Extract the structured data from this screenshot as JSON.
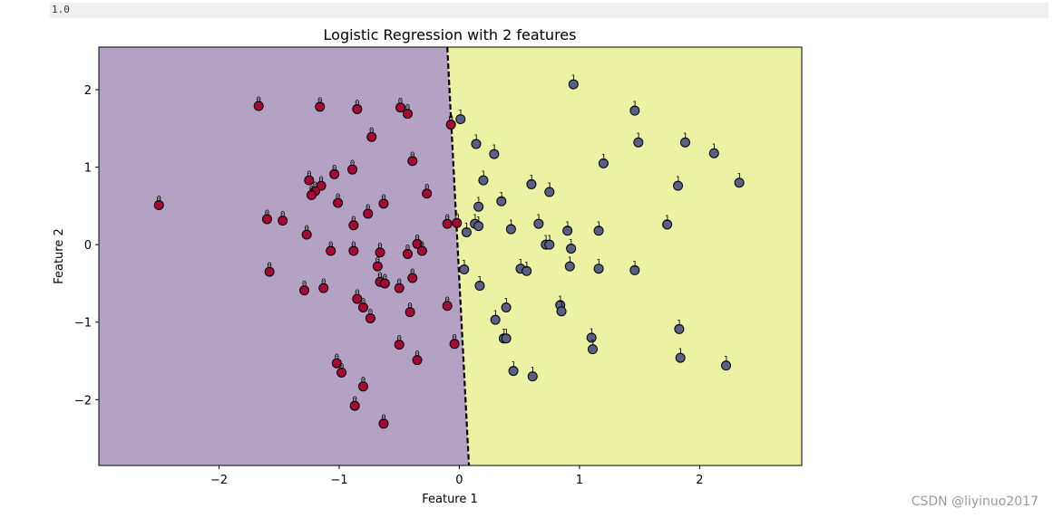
{
  "output_cell": {
    "text": "1.0"
  },
  "watermark": "CSDN @liyinuo2017",
  "colors": {
    "class0_region": "#b3a2c4",
    "class1_region": "#ebf2a4",
    "class0_point": "#a50a35",
    "class1_point": "#5a5f86",
    "boundary": "#000000"
  },
  "chart_data": {
    "type": "scatter",
    "title": "Logistic Regression with 2 features",
    "xlabel": "Feature 1",
    "ylabel": "Feature 2",
    "xlim": [
      -3.0,
      2.85
    ],
    "ylim": [
      -2.85,
      2.55
    ],
    "xticks": [
      -2,
      -1,
      0,
      1,
      2
    ],
    "xtick_labels": [
      "−2",
      "−1",
      "0",
      "1",
      "2"
    ],
    "yticks": [
      2,
      1,
      0,
      -1,
      -2
    ],
    "ytick_labels": [
      "2",
      "1",
      "0",
      "−1",
      "−2"
    ],
    "grid": false,
    "decision_boundary": [
      [
        -0.1,
        2.55
      ],
      [
        0.08,
        -2.85
      ]
    ],
    "series": [
      {
        "label": "0",
        "points": [
          [
            -2.5,
            0.51
          ],
          [
            -1.67,
            1.79
          ],
          [
            -1.16,
            1.78
          ],
          [
            -0.85,
            1.75
          ],
          [
            -0.49,
            1.77
          ],
          [
            -0.43,
            1.69
          ],
          [
            -0.07,
            1.55
          ],
          [
            -0.73,
            1.39
          ],
          [
            -0.39,
            1.08
          ],
          [
            -0.89,
            0.97
          ],
          [
            -1.04,
            0.91
          ],
          [
            -1.25,
            0.83
          ],
          [
            -1.15,
            0.76
          ],
          [
            -1.2,
            0.69
          ],
          [
            -1.23,
            0.64
          ],
          [
            -0.27,
            0.66
          ],
          [
            -1.01,
            0.54
          ],
          [
            -0.63,
            0.53
          ],
          [
            -0.76,
            0.4
          ],
          [
            -1.6,
            0.33
          ],
          [
            -1.47,
            0.31
          ],
          [
            -0.88,
            0.25
          ],
          [
            -0.1,
            0.27
          ],
          [
            -1.27,
            0.13
          ],
          [
            -0.35,
            0.01
          ],
          [
            -0.31,
            -0.08
          ],
          [
            -1.07,
            -0.08
          ],
          [
            -0.88,
            -0.08
          ],
          [
            -0.66,
            -0.1
          ],
          [
            -0.43,
            -0.12
          ],
          [
            -0.68,
            -0.28
          ],
          [
            -1.58,
            -0.35
          ],
          [
            -0.39,
            -0.43
          ],
          [
            -0.66,
            -0.48
          ],
          [
            -0.62,
            -0.5
          ],
          [
            -1.13,
            -0.56
          ],
          [
            -0.5,
            -0.56
          ],
          [
            -1.29,
            -0.59
          ],
          [
            -0.85,
            -0.7
          ],
          [
            -0.8,
            -0.81
          ],
          [
            -0.1,
            -0.79
          ],
          [
            -0.41,
            -0.87
          ],
          [
            -0.74,
            -0.95
          ],
          [
            -0.04,
            -1.28
          ],
          [
            -0.5,
            -1.29
          ],
          [
            -0.35,
            -1.49
          ],
          [
            -1.02,
            -1.53
          ],
          [
            -0.98,
            -1.65
          ],
          [
            -0.8,
            -1.83
          ],
          [
            -0.87,
            -2.08
          ],
          [
            -0.63,
            -2.31
          ],
          [
            -0.02,
            0.28
          ]
        ]
      },
      {
        "label": "1",
        "points": [
          [
            0.95,
            2.07
          ],
          [
            1.46,
            1.73
          ],
          [
            0.01,
            1.62
          ],
          [
            0.14,
            1.3
          ],
          [
            0.29,
            1.17
          ],
          [
            1.49,
            1.32
          ],
          [
            1.88,
            1.32
          ],
          [
            2.12,
            1.18
          ],
          [
            1.2,
            1.05
          ],
          [
            0.2,
            0.83
          ],
          [
            0.6,
            0.78
          ],
          [
            1.82,
            0.76
          ],
          [
            2.33,
            0.8
          ],
          [
            0.75,
            0.68
          ],
          [
            0.35,
            0.56
          ],
          [
            0.16,
            0.49
          ],
          [
            0.13,
            0.27
          ],
          [
            0.16,
            0.24
          ],
          [
            0.66,
            0.27
          ],
          [
            1.73,
            0.26
          ],
          [
            0.43,
            0.2
          ],
          [
            0.9,
            0.18
          ],
          [
            1.16,
            0.18
          ],
          [
            0.06,
            0.16
          ],
          [
            0.72,
            0.0
          ],
          [
            0.75,
            0.0
          ],
          [
            0.93,
            -0.05
          ],
          [
            0.92,
            -0.28
          ],
          [
            1.16,
            -0.31
          ],
          [
            1.46,
            -0.33
          ],
          [
            0.04,
            -0.32
          ],
          [
            0.51,
            -0.31
          ],
          [
            0.56,
            -0.34
          ],
          [
            0.17,
            -0.53
          ],
          [
            0.39,
            -0.81
          ],
          [
            0.84,
            -0.78
          ],
          [
            0.85,
            -0.86
          ],
          [
            0.3,
            -0.97
          ],
          [
            1.83,
            -1.09
          ],
          [
            1.1,
            -1.2
          ],
          [
            0.37,
            -1.21
          ],
          [
            0.39,
            -1.21
          ],
          [
            1.11,
            -1.35
          ],
          [
            1.84,
            -1.46
          ],
          [
            2.22,
            -1.56
          ],
          [
            0.45,
            -1.63
          ],
          [
            0.61,
            -1.7
          ]
        ]
      }
    ]
  }
}
